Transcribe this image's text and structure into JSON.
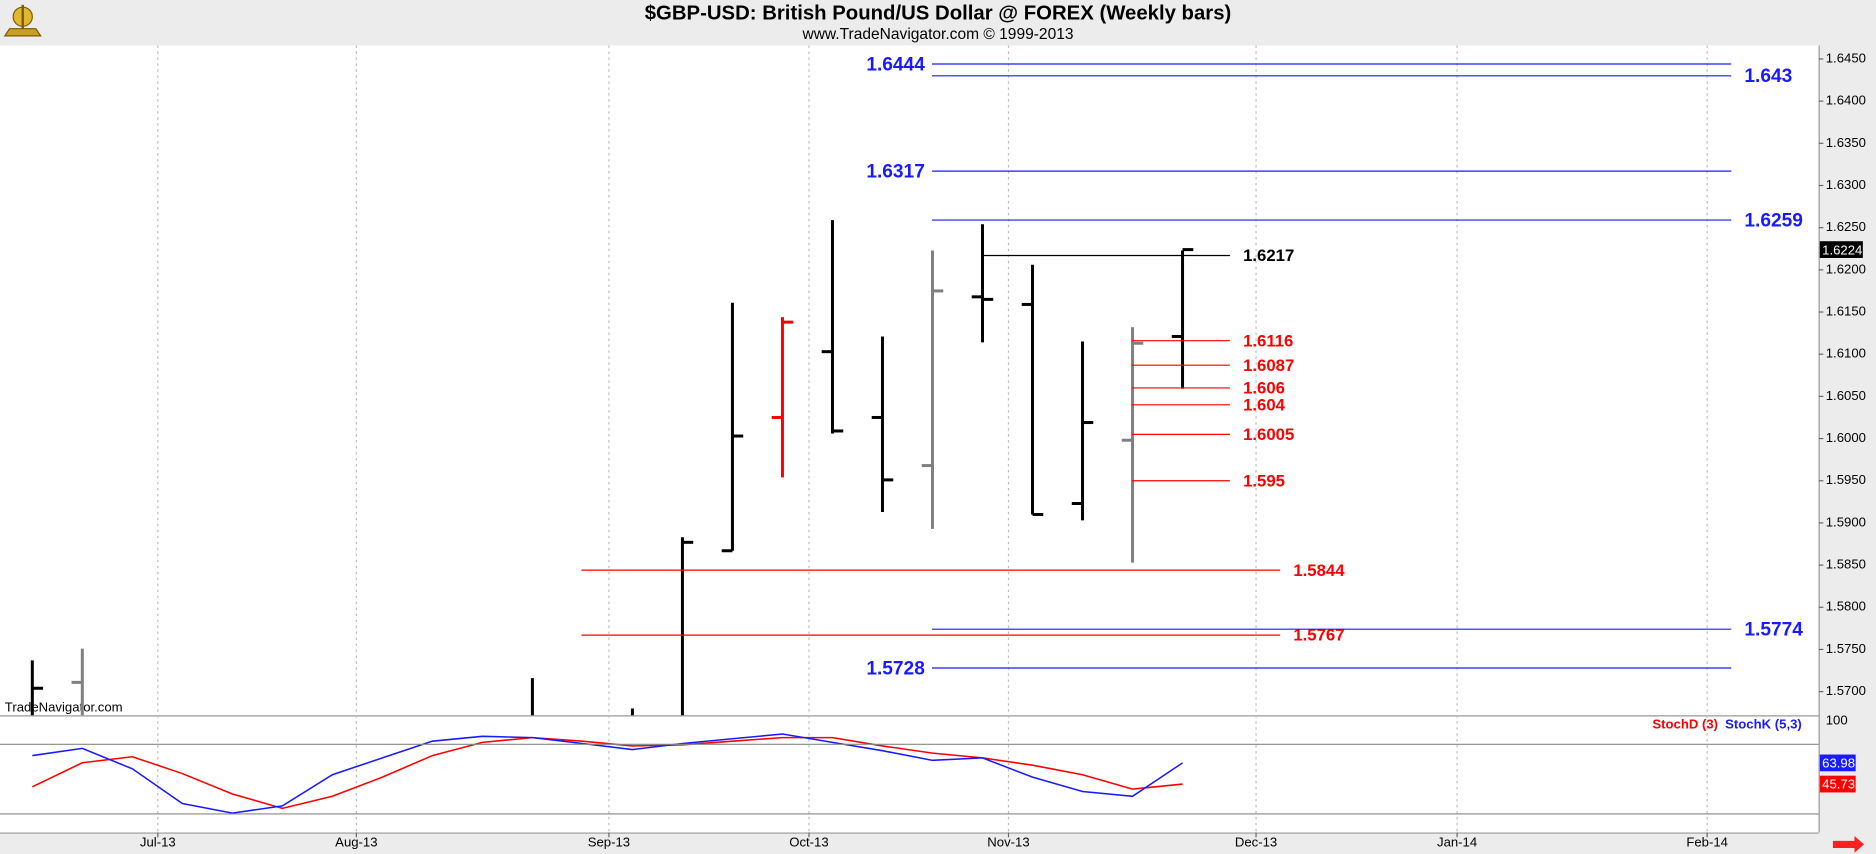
{
  "chart_data": [
    {
      "type": "ohlc",
      "title": "$GBP-USD:  British Pound/US Dollar @ FOREX  (Weekly bars)",
      "subtitle": "www.TradeNavigator.com © 1999-2013",
      "watermark": "TradeNavigator.com",
      "xlim": [
        -0.646,
        35.718
      ],
      "ylim": [
        1.5672,
        1.6466
      ],
      "yticks": [
        {
          "value": 1.57,
          "label": "1.5700"
        },
        {
          "value": 1.575,
          "label": "1.5750"
        },
        {
          "value": 1.58,
          "label": "1.5800"
        },
        {
          "value": 1.585,
          "label": "1.5850"
        },
        {
          "value": 1.59,
          "label": "1.5900"
        },
        {
          "value": 1.595,
          "label": "1.5950"
        },
        {
          "value": 1.6,
          "label": "1.6000"
        },
        {
          "value": 1.605,
          "label": "1.6050"
        },
        {
          "value": 1.61,
          "label": "1.6100"
        },
        {
          "value": 1.615,
          "label": "1.6150"
        },
        {
          "value": 1.62,
          "label": "1.6200"
        },
        {
          "value": 1.625,
          "label": "1.6250"
        },
        {
          "value": 1.63,
          "label": "1.6300"
        },
        {
          "value": 1.635,
          "label": "1.6350"
        },
        {
          "value": 1.64,
          "label": "1.6400"
        },
        {
          "value": 1.645,
          "label": "1.6450"
        }
      ],
      "x": [
        0,
        1,
        10,
        12,
        13,
        14,
        15,
        16,
        17,
        18,
        19,
        20,
        21,
        22,
        23
      ],
      "open": [
        null,
        1.5711,
        null,
        null,
        null,
        1.5867,
        1.6025,
        1.6103,
        1.6025,
        1.5968,
        1.6168,
        1.6159,
        1.5923,
        1.5998,
        1.6121
      ],
      "high": [
        1.5737,
        1.5751,
        1.5716,
        1.568,
        1.5883,
        1.6161,
        1.6144,
        1.6259,
        1.6121,
        1.6223,
        1.6254,
        1.6206,
        1.6115,
        1.6132,
        1.6223
      ],
      "low": [
        null,
        null,
        null,
        null,
        null,
        1.5867,
        1.5954,
        1.6006,
        1.5913,
        1.5893,
        1.6114,
        1.591,
        1.5903,
        1.5853,
        1.6059
      ],
      "close": [
        1.5704,
        null,
        null,
        null,
        1.5877,
        1.6003,
        1.6138,
        1.6009,
        1.5951,
        1.6175,
        1.6165,
        1.591,
        1.6019,
        1.6113,
        1.6224
      ],
      "colors": [
        "#000000",
        "#808080",
        "#000000",
        "#000000",
        "#000000",
        "#000000",
        "#ff0000",
        "#000000",
        "#000000",
        "#808080",
        "#000000",
        "#000000",
        "#000000",
        "#808080",
        "#000000"
      ],
      "last_price": 1.6224,
      "levels": [
        {
          "value": 1.6444,
          "color": "#1a1aff"
        },
        {
          "value": 1.643,
          "color": "#1a1aff"
        },
        {
          "value": 1.6317,
          "color": "#1a1aff"
        },
        {
          "value": 1.6259,
          "color": "#1a1aff"
        },
        {
          "value": 1.6217,
          "color": "#000000"
        },
        {
          "value": 1.6116,
          "color": "#ff0000"
        },
        {
          "value": 1.6087,
          "color": "#ff0000"
        },
        {
          "value": 1.606,
          "color": "#ff0000"
        },
        {
          "value": 1.604,
          "color": "#ff0000"
        },
        {
          "value": 1.6005,
          "color": "#ff0000"
        },
        {
          "value": 1.595,
          "color": "#ff0000"
        },
        {
          "value": 1.5844,
          "color": "#ff0000"
        },
        {
          "value": 1.5767,
          "color": "#ff0000"
        },
        {
          "value": 1.5774,
          "color": "#1a1aff"
        },
        {
          "value": 1.5728,
          "color": "#1a1aff"
        }
      ]
    },
    {
      "type": "line",
      "xlim": [
        -0.646,
        35.718
      ],
      "ylim": [
        4,
        103
      ],
      "yticks": [
        100
      ],
      "hlines": [
        80,
        20
      ],
      "xticks": [
        {
          "value": 2.51,
          "label": "Jul-13"
        },
        {
          "value": 6.48,
          "label": "Aug-13"
        },
        {
          "value": 11.53,
          "label": "Sep-13"
        },
        {
          "value": 15.53,
          "label": "Oct-13"
        },
        {
          "value": 19.52,
          "label": "Nov-13"
        },
        {
          "value": 24.47,
          "label": "Dec-13"
        },
        {
          "value": 28.49,
          "label": "Jan-14"
        },
        {
          "value": 33.49,
          "label": "Feb-14"
        }
      ],
      "x": [
        0,
        1,
        2,
        3,
        4,
        5,
        6,
        7,
        8,
        9,
        10,
        11,
        12,
        13,
        14,
        15,
        16,
        17,
        18,
        19,
        20,
        21,
        22,
        23
      ],
      "series": [
        {
          "name": "StochD (3)",
          "color": "#ff0000",
          "values": [
            43.4,
            64.1,
            69.3,
            54.8,
            37.2,
            24.8,
            35.2,
            51.7,
            70.3,
            81.7,
            85.8,
            82.7,
            78.6,
            79.6,
            82.7,
            85.8,
            85.8,
            78.6,
            72.4,
            68.3,
            62.0,
            53.8,
            41.4,
            45.73
          ]
        },
        {
          "name": "StochK (5,3)",
          "color": "#1a1aff",
          "values": [
            70.3,
            76.5,
            58.9,
            29.0,
            20.7,
            26.9,
            53.8,
            68.3,
            82.7,
            86.9,
            85.8,
            80.7,
            75.5,
            80.7,
            84.8,
            88.9,
            81.7,
            74.5,
            66.2,
            68.3,
            51.7,
            39.3,
            35.2,
            63.98
          ]
        }
      ]
    }
  ]
}
